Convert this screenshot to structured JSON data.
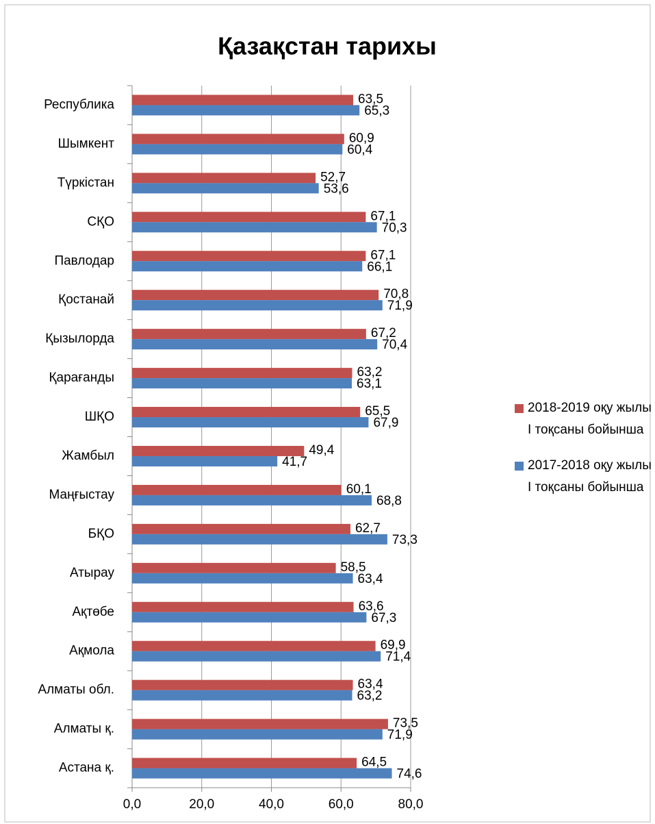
{
  "chart_data": {
    "type": "hbar",
    "title": "Қазақстан тарихы",
    "categories": [
      "Республика",
      "Шымкент",
      "Түркістан",
      "СҚО",
      "Павлодар",
      "Қостанай",
      "Қызылорда",
      "Қарағанды",
      "ШҚО",
      "Жамбыл",
      "Маңғыстау",
      "БҚО",
      "Атырау",
      "Ақтөбе",
      "Ақмола",
      "Алматы обл.",
      "Алматы қ.",
      "Астана қ."
    ],
    "series": [
      {
        "name": "2018-2019 оқу жылы  I тоқсаны бойынша",
        "color": "#c0504d",
        "values": [
          63.5,
          60.9,
          52.7,
          67.1,
          67.1,
          70.8,
          67.2,
          63.2,
          65.5,
          49.4,
          60.1,
          62.7,
          58.5,
          63.6,
          69.9,
          63.4,
          73.5,
          64.5
        ],
        "value_labels": [
          "63,5",
          "60,9",
          "52,7",
          "67,1",
          "67,1",
          "70,8",
          "67,2",
          "63,2",
          "65,5",
          "49,4",
          "60,1",
          "62,7",
          "58,5",
          "63,6",
          "69,9",
          "63,4",
          "73,5",
          "64,5"
        ]
      },
      {
        "name": "2017-2018 оқу жылы  I тоқсаны бойынша",
        "color": "#4f81bd",
        "values": [
          65.3,
          60.4,
          53.6,
          70.3,
          66.1,
          71.9,
          70.4,
          63.1,
          67.9,
          41.7,
          68.8,
          73.3,
          63.4,
          67.3,
          71.4,
          63.2,
          71.9,
          74.6
        ],
        "value_labels": [
          "65,3",
          "60,4",
          "53,6",
          "70,3",
          "66,1",
          "71,9",
          "70,4",
          "63,1",
          "67,9",
          "41,7",
          "68,8",
          "73,3",
          "63,4",
          "67,3",
          "71,4",
          "63,2",
          "71,9",
          "74,6"
        ]
      }
    ],
    "xlim": [
      0,
      80
    ],
    "xticks": [
      {
        "value": 0,
        "label": "0,0"
      },
      {
        "value": 20,
        "label": "20,0"
      },
      {
        "value": 40,
        "label": "40,0"
      },
      {
        "value": 60,
        "label": "60,0"
      },
      {
        "value": 80,
        "label": "80,0"
      }
    ],
    "grid": true,
    "legend": "right"
  }
}
